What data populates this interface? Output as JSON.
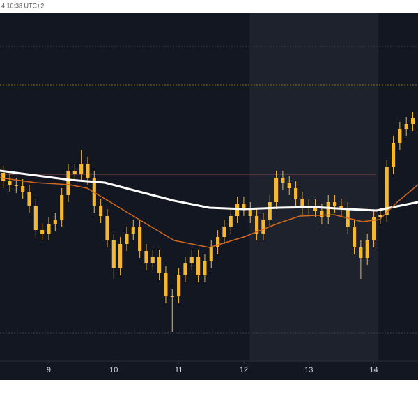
{
  "chart_data": {
    "type": "candlestick",
    "timestamp": "4 10:38 UTC+2",
    "color": "#f5b82e",
    "xlim": [
      8.25,
      14.68
    ],
    "xticks": [
      9,
      10,
      11,
      12,
      13,
      14
    ],
    "ylim": [
      0,
      100
    ],
    "shaded": [
      [
        12.09,
        14.07,
        "#1e222d"
      ]
    ],
    "levels": [
      {
        "value": 90.2,
        "color": "#3a3f4b",
        "dash": true
      },
      {
        "value": 79.2,
        "color": "#8a6a1f",
        "dash": true
      },
      {
        "value": 53.6,
        "color": "#8a4b4e",
        "dash": false,
        "xend": 14.04
      },
      {
        "value": 8,
        "color": "#3a3f4b",
        "dash": true
      }
    ],
    "x": [
      8.3,
      8.4,
      8.5,
      8.6,
      8.7,
      8.8,
      8.9,
      9.0,
      9.1,
      9.2,
      9.3,
      9.4,
      9.5,
      9.6,
      9.7,
      9.8,
      9.9,
      10.0,
      10.1,
      10.2,
      10.3,
      10.4,
      10.5,
      10.6,
      10.7,
      10.8,
      10.9,
      11.0,
      11.1,
      11.2,
      11.3,
      11.4,
      11.5,
      11.6,
      11.7,
      11.8,
      11.9,
      12.0,
      12.1,
      12.2,
      12.3,
      12.4,
      12.5,
      12.6,
      12.7,
      12.8,
      12.9,
      13.0,
      13.1,
      13.2,
      13.3,
      13.4,
      13.5,
      13.6,
      13.7,
      13.8,
      13.9,
      14.0,
      14.1,
      14.2,
      14.3,
      14.4,
      14.5,
      14.6
    ],
    "open": [
      54,
      51.6,
      50.6,
      50.2,
      48.6,
      44.6,
      37.6,
      36.6,
      39.2,
      40.6,
      47.6,
      54.6,
      53.6,
      56.6,
      52.6,
      44.6,
      41.6,
      34.6,
      26.6,
      33.6,
      36.6,
      38.6,
      31.6,
      28,
      30,
      25.2,
      18.6,
      18.6,
      24.6,
      28,
      30,
      24.6,
      28.6,
      32.6,
      35.6,
      38.6,
      41.6,
      45.2,
      43.6,
      41.6,
      36.6,
      40.6,
      45.6,
      52.6,
      51.2,
      49.6,
      46.6,
      44,
      44.4,
      43.2,
      41.2,
      45.6,
      44.6,
      43.6,
      38.6,
      32.6,
      29.6,
      34.6,
      41.2,
      42,
      55.6,
      62.6,
      66.6,
      68
    ],
    "high": [
      56,
      53.6,
      52.6,
      52.2,
      50.6,
      46.6,
      39.6,
      41.2,
      42.6,
      49.6,
      56.6,
      56.6,
      60.6,
      58.6,
      54.6,
      46.6,
      43.6,
      36.6,
      35.6,
      38.6,
      40.6,
      40.6,
      33.6,
      32,
      32,
      27.2,
      20.6,
      26.6,
      30,
      32,
      32,
      30.6,
      34.6,
      37.6,
      40.6,
      43.6,
      47.2,
      47.2,
      45.6,
      43.6,
      42.6,
      47.6,
      54.6,
      54.6,
      53.2,
      51.6,
      48.6,
      46.4,
      46.4,
      45.2,
      47.6,
      47.6,
      46.6,
      45.6,
      40.6,
      34.6,
      36.6,
      43.2,
      44,
      57.6,
      64.6,
      68.6,
      70,
      71.6
    ],
    "low": [
      49.6,
      48.6,
      48.2,
      46.6,
      42.6,
      35.6,
      34.6,
      34.6,
      37.2,
      38.6,
      45.6,
      51.6,
      51.6,
      50.6,
      42.6,
      39.6,
      32.6,
      23.6,
      24.6,
      31.6,
      34.6,
      29.6,
      26,
      26,
      23.2,
      16.6,
      8.4,
      16.6,
      22.6,
      26,
      22.6,
      22.6,
      26.6,
      30.6,
      33.6,
      36.6,
      39.6,
      41.6,
      39.6,
      34.6,
      34.6,
      38.6,
      43.6,
      49.2,
      47.6,
      44.6,
      42,
      42,
      41.2,
      39.2,
      39.2,
      42.6,
      41.6,
      36.6,
      30.6,
      23.6,
      27.6,
      32.6,
      39.2,
      40,
      53.6,
      60.6,
      64.6,
      66
    ],
    "close": [
      51.6,
      50.6,
      50.2,
      48.6,
      44.6,
      37.6,
      36.6,
      39.2,
      40.6,
      47.6,
      54.6,
      53.6,
      56.6,
      52.6,
      44.6,
      41.6,
      34.6,
      26.6,
      33.6,
      36.6,
      38.6,
      31.6,
      28,
      30,
      25.2,
      18.6,
      18.6,
      24.6,
      28,
      30,
      24.6,
      28.6,
      32.6,
      35.6,
      38.6,
      41.6,
      45.2,
      43.6,
      41.6,
      36.6,
      40.6,
      45.6,
      52.6,
      51.2,
      49.6,
      46.6,
      44,
      44.4,
      43.2,
      41.2,
      45.6,
      44.6,
      43.6,
      38.6,
      32.6,
      29.6,
      34.6,
      41.2,
      42,
      55.6,
      62.6,
      66.6,
      68,
      69.6
    ],
    "overlays": [
      {
        "color": "#ffffff",
        "width": 3,
        "x": [
          8.25,
          9.32,
          9.86,
          10.39,
          10.93,
          11.47,
          12.0,
          12.54,
          13.07,
          13.61,
          14.04,
          14.25,
          14.68
        ],
        "values": [
          54.6,
          52,
          51.2,
          48.6,
          46,
          44,
          43.6,
          44,
          44.2,
          43.6,
          43.2,
          44,
          45.6
        ]
      },
      {
        "color": "#d2691e",
        "width": 1.5,
        "x": [
          8.25,
          8.79,
          9.32,
          9.59,
          9.86,
          10.39,
          10.93,
          11.47,
          12.0,
          12.54,
          12.86,
          13.39,
          13.82,
          14.09,
          14.36,
          14.68
        ],
        "values": [
          52.6,
          51.2,
          50.6,
          49.6,
          46.6,
          40.6,
          34.6,
          32.6,
          35.6,
          39.6,
          41.6,
          42,
          40,
          40.6,
          45.6,
          50.6
        ]
      }
    ]
  }
}
